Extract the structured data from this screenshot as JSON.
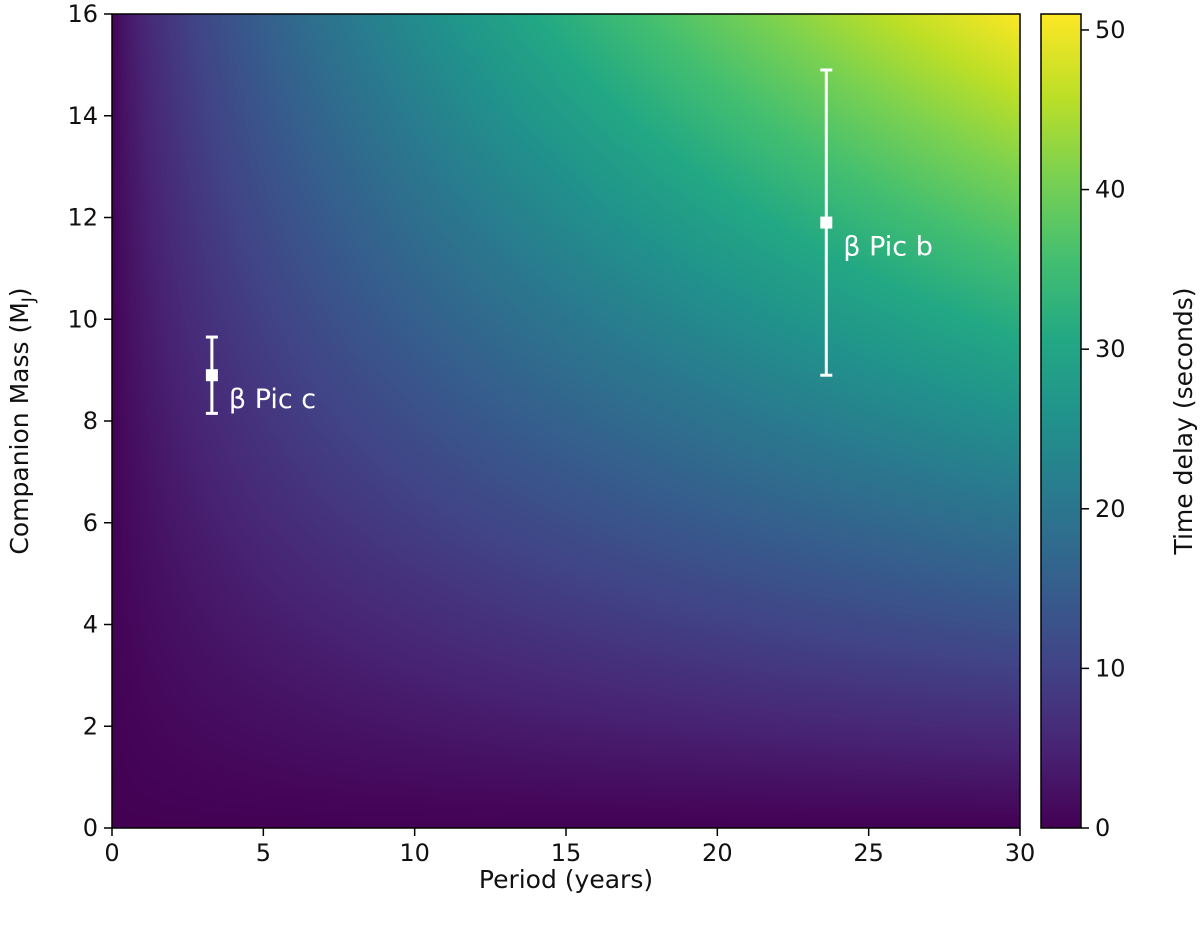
{
  "chart_data": {
    "type": "heatmap",
    "title": "",
    "xlabel": "Period (years)",
    "ylabel_main": "Companion Mass (M",
    "ylabel_sub": "J",
    "ylabel_close": ")",
    "xlim": [
      0,
      30
    ],
    "ylim": [
      0,
      16
    ],
    "x_ticks": [
      0,
      5,
      10,
      15,
      20,
      25,
      30
    ],
    "y_ticks": [
      0,
      2,
      4,
      6,
      8,
      10,
      12,
      14,
      16
    ],
    "colormap": "viridis",
    "colorbar": {
      "label": "Time delay (seconds)",
      "range": [
        0,
        51
      ],
      "ticks": [
        0,
        10,
        20,
        30,
        40,
        50
      ]
    },
    "field": {
      "description_units": "time delay in seconds at (period, mass)",
      "corner_values": {
        "p0_m0": 0,
        "p30_m16": 51
      }
    },
    "points": [
      {
        "name": "β Pic c",
        "x": 3.3,
        "y": 8.9,
        "y_err_low": 0.75,
        "y_err_high": 0.75
      },
      {
        "name": "β Pic b",
        "x": 23.6,
        "y": 11.9,
        "y_err_low": 3.0,
        "y_err_high": 3.0
      }
    ],
    "point_color": "#ffffff"
  }
}
